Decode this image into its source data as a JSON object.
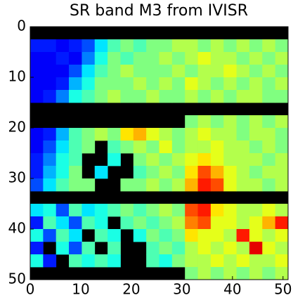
{
  "chart_data": {
    "type": "heatmap",
    "title": "SR band M3 from IVISR",
    "colormap": "jet",
    "zlim": [
      0,
      1
    ],
    "xlim": [
      0,
      51
    ],
    "ylim": [
      0,
      50
    ],
    "y_inverted": true,
    "xticks": [
      0,
      10,
      20,
      30,
      40,
      50
    ],
    "yticks": [
      0,
      10,
      20,
      30,
      40,
      50
    ],
    "values": [
      [
        null,
        null,
        null,
        null,
        null,
        null,
        null,
        null,
        null,
        null,
        null,
        null,
        null,
        null,
        null,
        null,
        null,
        null,
        null,
        null
      ],
      [
        0.15,
        0.15,
        0.12,
        0.15,
        0.2,
        0.35,
        0.45,
        0.5,
        0.45,
        0.5,
        0.5,
        0.55,
        0.55,
        0.5,
        0.55,
        0.5,
        0.55,
        0.5,
        0.55,
        0.5
      ],
      [
        0.12,
        0.12,
        0.15,
        0.12,
        0.25,
        0.4,
        0.5,
        0.45,
        0.5,
        0.5,
        0.55,
        0.5,
        0.55,
        0.6,
        0.55,
        0.55,
        0.5,
        0.55,
        0.5,
        0.55
      ],
      [
        0.12,
        0.12,
        0.12,
        0.2,
        0.35,
        0.45,
        0.5,
        0.55,
        0.5,
        0.5,
        0.5,
        0.55,
        0.5,
        0.55,
        0.55,
        0.6,
        0.55,
        0.5,
        0.55,
        0.5
      ],
      [
        0.12,
        0.12,
        0.15,
        0.3,
        0.4,
        0.5,
        0.5,
        0.5,
        0.55,
        0.5,
        0.55,
        0.5,
        0.6,
        0.55,
        0.5,
        0.55,
        0.5,
        0.55,
        0.5,
        0.55
      ],
      [
        0.12,
        0.15,
        0.25,
        0.4,
        0.45,
        0.5,
        0.55,
        0.5,
        0.5,
        0.55,
        0.5,
        0.5,
        0.55,
        0.5,
        0.55,
        0.5,
        0.55,
        0.55,
        0.5,
        0.5
      ],
      [
        null,
        null,
        null,
        null,
        null,
        null,
        null,
        null,
        null,
        null,
        null,
        null,
        null,
        null,
        null,
        null,
        null,
        null,
        null,
        null
      ],
      [
        null,
        null,
        null,
        null,
        null,
        null,
        null,
        null,
        null,
        null,
        null,
        null,
        0.5,
        0.55,
        0.5,
        0.55,
        0.5,
        0.55,
        0.5,
        0.55
      ],
      [
        0.12,
        0.15,
        0.3,
        0.45,
        0.5,
        0.55,
        0.5,
        0.65,
        0.7,
        0.6,
        0.55,
        0.5,
        0.55,
        0.6,
        0.55,
        0.55,
        0.5,
        0.55,
        0.55,
        0.5
      ],
      [
        0.12,
        0.2,
        0.35,
        0.45,
        0.5,
        null,
        0.45,
        0.5,
        0.55,
        0.5,
        0.6,
        0.5,
        0.55,
        0.55,
        0.6,
        0.55,
        0.55,
        0.5,
        0.55,
        0.5
      ],
      [
        0.15,
        0.25,
        0.4,
        0.45,
        null,
        null,
        0.4,
        null,
        0.5,
        0.55,
        0.5,
        0.55,
        0.6,
        0.65,
        0.6,
        0.55,
        0.55,
        0.55,
        0.5,
        0.55
      ],
      [
        0.15,
        0.3,
        0.4,
        0.5,
        null,
        0.35,
        null,
        null,
        0.45,
        0.5,
        0.55,
        0.5,
        0.65,
        0.8,
        0.7,
        0.6,
        0.55,
        0.5,
        0.55,
        0.55
      ],
      [
        0.2,
        0.35,
        0.45,
        0.5,
        0.5,
        null,
        null,
        0.5,
        0.5,
        0.55,
        0.5,
        0.55,
        0.7,
        0.85,
        0.8,
        0.6,
        0.55,
        0.55,
        0.5,
        0.55
      ],
      [
        null,
        null,
        null,
        null,
        null,
        null,
        null,
        null,
        null,
        null,
        null,
        null,
        null,
        null,
        null,
        null,
        null,
        null,
        null,
        null
      ],
      [
        0.35,
        0.4,
        0.2,
        0.45,
        0.35,
        0.4,
        0.45,
        0.5,
        0.45,
        0.5,
        0.55,
        0.5,
        0.8,
        0.85,
        0.65,
        0.6,
        0.55,
        0.55,
        0.6,
        0.55
      ],
      [
        0.15,
        0.45,
        0.35,
        0.2,
        0.45,
        0.4,
        null,
        0.45,
        0.5,
        0.45,
        0.5,
        0.55,
        0.75,
        0.8,
        0.6,
        0.6,
        0.55,
        0.6,
        0.7,
        0.85
      ],
      [
        0.4,
        0.2,
        0.45,
        0.35,
        null,
        0.45,
        0.4,
        null,
        0.4,
        0.5,
        0.45,
        0.5,
        0.65,
        0.6,
        0.6,
        0.55,
        0.85,
        0.6,
        0.55,
        0.6
      ],
      [
        0.15,
        null,
        0.4,
        0.2,
        0.45,
        null,
        0.45,
        null,
        null,
        0.45,
        0.5,
        0.45,
        0.55,
        0.6,
        0.55,
        0.6,
        0.55,
        0.9,
        0.6,
        0.55
      ],
      [
        0.4,
        0.15,
        null,
        0.45,
        0.4,
        0.45,
        0.4,
        null,
        null,
        0.45,
        0.4,
        0.5,
        0.55,
        0.55,
        0.6,
        0.55,
        0.6,
        0.55,
        0.55,
        0.6
      ],
      [
        null,
        null,
        null,
        null,
        null,
        null,
        null,
        null,
        null,
        null,
        null,
        null,
        0.5,
        0.55,
        0.5,
        0.55,
        0.5,
        0.55,
        0.5,
        0.55
      ]
    ]
  }
}
